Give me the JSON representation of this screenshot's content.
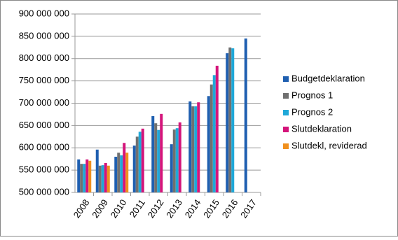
{
  "chart_data": {
    "type": "bar",
    "categories": [
      "2008",
      "2009",
      "2010",
      "2011",
      "2012",
      "2013",
      "2014",
      "2015",
      "2016",
      "2017"
    ],
    "series": [
      {
        "name": "Budgetdeklaration",
        "color": "#1f5fb0",
        "values": [
          574000000,
          596000000,
          580000000,
          605000000,
          671000000,
          608000000,
          704000000,
          716000000,
          812000000,
          845000000
        ]
      },
      {
        "name": "Prognos 1",
        "color": "#707070",
        "values": [
          564000000,
          560000000,
          589000000,
          625000000,
          655000000,
          641000000,
          693000000,
          742000000,
          825000000,
          null
        ]
      },
      {
        "name": "Prognos 2",
        "color": "#1fa8d8",
        "values": [
          564000000,
          561000000,
          583000000,
          636000000,
          640000000,
          644000000,
          693000000,
          763000000,
          823000000,
          null
        ]
      },
      {
        "name": "Slutdeklaration",
        "color": "#d4147a",
        "values": [
          574000000,
          566000000,
          611000000,
          643000000,
          676000000,
          657000000,
          702000000,
          784000000,
          null,
          null
        ]
      },
      {
        "name": "Slutdekl, reviderad",
        "color": "#f0901e",
        "values": [
          571000000,
          560000000,
          589000000,
          null,
          null,
          null,
          null,
          null,
          null,
          null
        ]
      }
    ],
    "ylim": [
      500000000,
      900000000
    ],
    "yticks": [
      {
        "value": 500000000,
        "label": "500 000 000"
      },
      {
        "value": 550000000,
        "label": "550 000 000"
      },
      {
        "value": 600000000,
        "label": "600 000 000"
      },
      {
        "value": 650000000,
        "label": "650 000 000"
      },
      {
        "value": 700000000,
        "label": "700 000 000"
      },
      {
        "value": 750000000,
        "label": "750 000 000"
      },
      {
        "value": 800000000,
        "label": "800 000 000"
      },
      {
        "value": 850000000,
        "label": "850 000 000"
      },
      {
        "value": 900000000,
        "label": "900 000 000"
      }
    ],
    "grid": true,
    "legend": "right"
  }
}
